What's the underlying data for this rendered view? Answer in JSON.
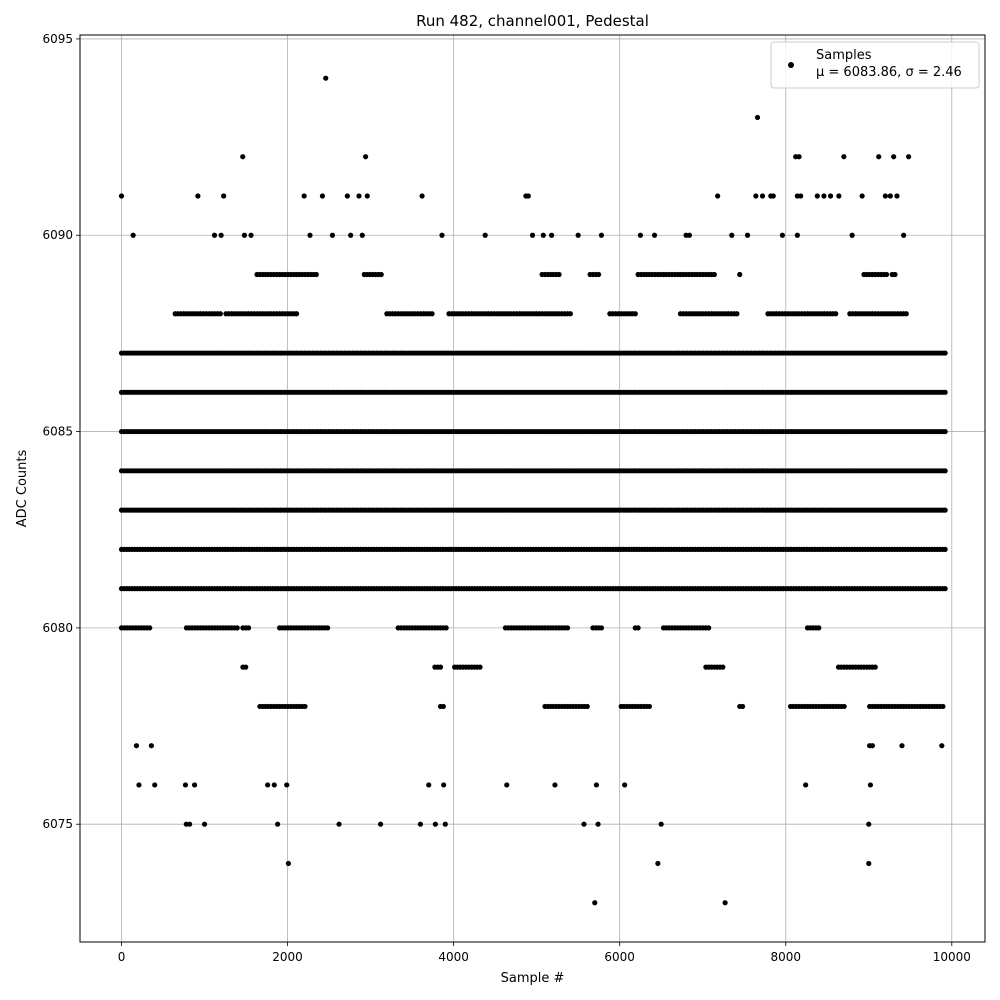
{
  "chart_data": {
    "type": "scatter",
    "title": "Run 482, channel001, Pedestal",
    "xlabel": "Sample #",
    "ylabel": "ADC Counts",
    "xlim": [
      -500,
      10400
    ],
    "ylim": [
      6072,
      6095.1
    ],
    "x_ticks": [
      0,
      2000,
      4000,
      6000,
      8000,
      10000
    ],
    "y_ticks": [
      6075,
      6080,
      6085,
      6090,
      6095
    ],
    "grid": true,
    "legend_position": "upper right",
    "series": [
      {
        "name": "Samples",
        "stats_label": "μ = 6083.86, σ = 2.46",
        "color": "#000000",
        "marker": "circle",
        "n_samples": 10000,
        "level_bands": [
          {
            "y": 6081,
            "x_start": 0,
            "x_end": 9920
          },
          {
            "y": 6082,
            "x_start": 0,
            "x_end": 9920
          },
          {
            "y": 6083,
            "x_start": 0,
            "x_end": 9920
          },
          {
            "y": 6084,
            "x_start": 0,
            "x_end": 9920
          },
          {
            "y": 6085,
            "x_start": 0,
            "x_end": 9920
          },
          {
            "y": 6086,
            "x_start": 0,
            "x_end": 9920
          },
          {
            "y": 6087,
            "x_start": 0,
            "x_end": 9920
          }
        ],
        "points": [
          [
            0,
            6091
          ],
          [
            140,
            6090
          ],
          [
            180,
            6077
          ],
          [
            210,
            6076
          ],
          [
            360,
            6077
          ],
          [
            400,
            6076
          ],
          [
            770,
            6076
          ],
          [
            780,
            6075
          ],
          [
            820,
            6075
          ],
          [
            880,
            6076
          ],
          [
            920,
            6091
          ],
          [
            1000,
            6075
          ],
          [
            1120,
            6090
          ],
          [
            1200,
            6090
          ],
          [
            1230,
            6091
          ],
          [
            1460,
            6092
          ],
          [
            1480,
            6090
          ],
          [
            1560,
            6090
          ],
          [
            1760,
            6076
          ],
          [
            1840,
            6076
          ],
          [
            1880,
            6075
          ],
          [
            1990,
            6076
          ],
          [
            2010,
            6074
          ],
          [
            2200,
            6091
          ],
          [
            2270,
            6090
          ],
          [
            2420,
            6091
          ],
          [
            2460,
            6094
          ],
          [
            2540,
            6090
          ],
          [
            2620,
            6075
          ],
          [
            2720,
            6091
          ],
          [
            2760,
            6090
          ],
          [
            2860,
            6091
          ],
          [
            2900,
            6090
          ],
          [
            2940,
            6092
          ],
          [
            2960,
            6091
          ],
          [
            3120,
            6075
          ],
          [
            3600,
            6075
          ],
          [
            3620,
            6091
          ],
          [
            3700,
            6076
          ],
          [
            3780,
            6075
          ],
          [
            3860,
            6090
          ],
          [
            3880,
            6076
          ],
          [
            3900,
            6075
          ],
          [
            4380,
            6090
          ],
          [
            4640,
            6076
          ],
          [
            4870,
            6091
          ],
          [
            4900,
            6091
          ],
          [
            4950,
            6090
          ],
          [
            5080,
            6090
          ],
          [
            5180,
            6090
          ],
          [
            5220,
            6076
          ],
          [
            5500,
            6090
          ],
          [
            5570,
            6075
          ],
          [
            5700,
            6073
          ],
          [
            5720,
            6076
          ],
          [
            5740,
            6075
          ],
          [
            5780,
            6090
          ],
          [
            6060,
            6076
          ],
          [
            6250,
            6090
          ],
          [
            6420,
            6090
          ],
          [
            6460,
            6074
          ],
          [
            6500,
            6075
          ],
          [
            6800,
            6090
          ],
          [
            6840,
            6090
          ],
          [
            7180,
            6091
          ],
          [
            7270,
            6073
          ],
          [
            7350,
            6090
          ],
          [
            7540,
            6090
          ],
          [
            7640,
            6091
          ],
          [
            7660,
            6093
          ],
          [
            7720,
            6091
          ],
          [
            7820,
            6091
          ],
          [
            7850,
            6091
          ],
          [
            7960,
            6090
          ],
          [
            8120,
            6092
          ],
          [
            8160,
            6092
          ],
          [
            8140,
            6091
          ],
          [
            8180,
            6091
          ],
          [
            8140,
            6090
          ],
          [
            8240,
            6076
          ],
          [
            8380,
            6091
          ],
          [
            8460,
            6091
          ],
          [
            8540,
            6091
          ],
          [
            8640,
            6091
          ],
          [
            8700,
            6092
          ],
          [
            8800,
            6090
          ],
          [
            8920,
            6091
          ],
          [
            9000,
            6075
          ],
          [
            9000,
            6074
          ],
          [
            9020,
            6076
          ],
          [
            9120,
            6092
          ],
          [
            9200,
            6091
          ],
          [
            9260,
            6091
          ],
          [
            9300,
            6092
          ],
          [
            9340,
            6091
          ],
          [
            9400,
            6077
          ],
          [
            9420,
            6090
          ],
          [
            9480,
            6092
          ],
          [
            9880,
            6077
          ]
        ]
      }
    ]
  }
}
